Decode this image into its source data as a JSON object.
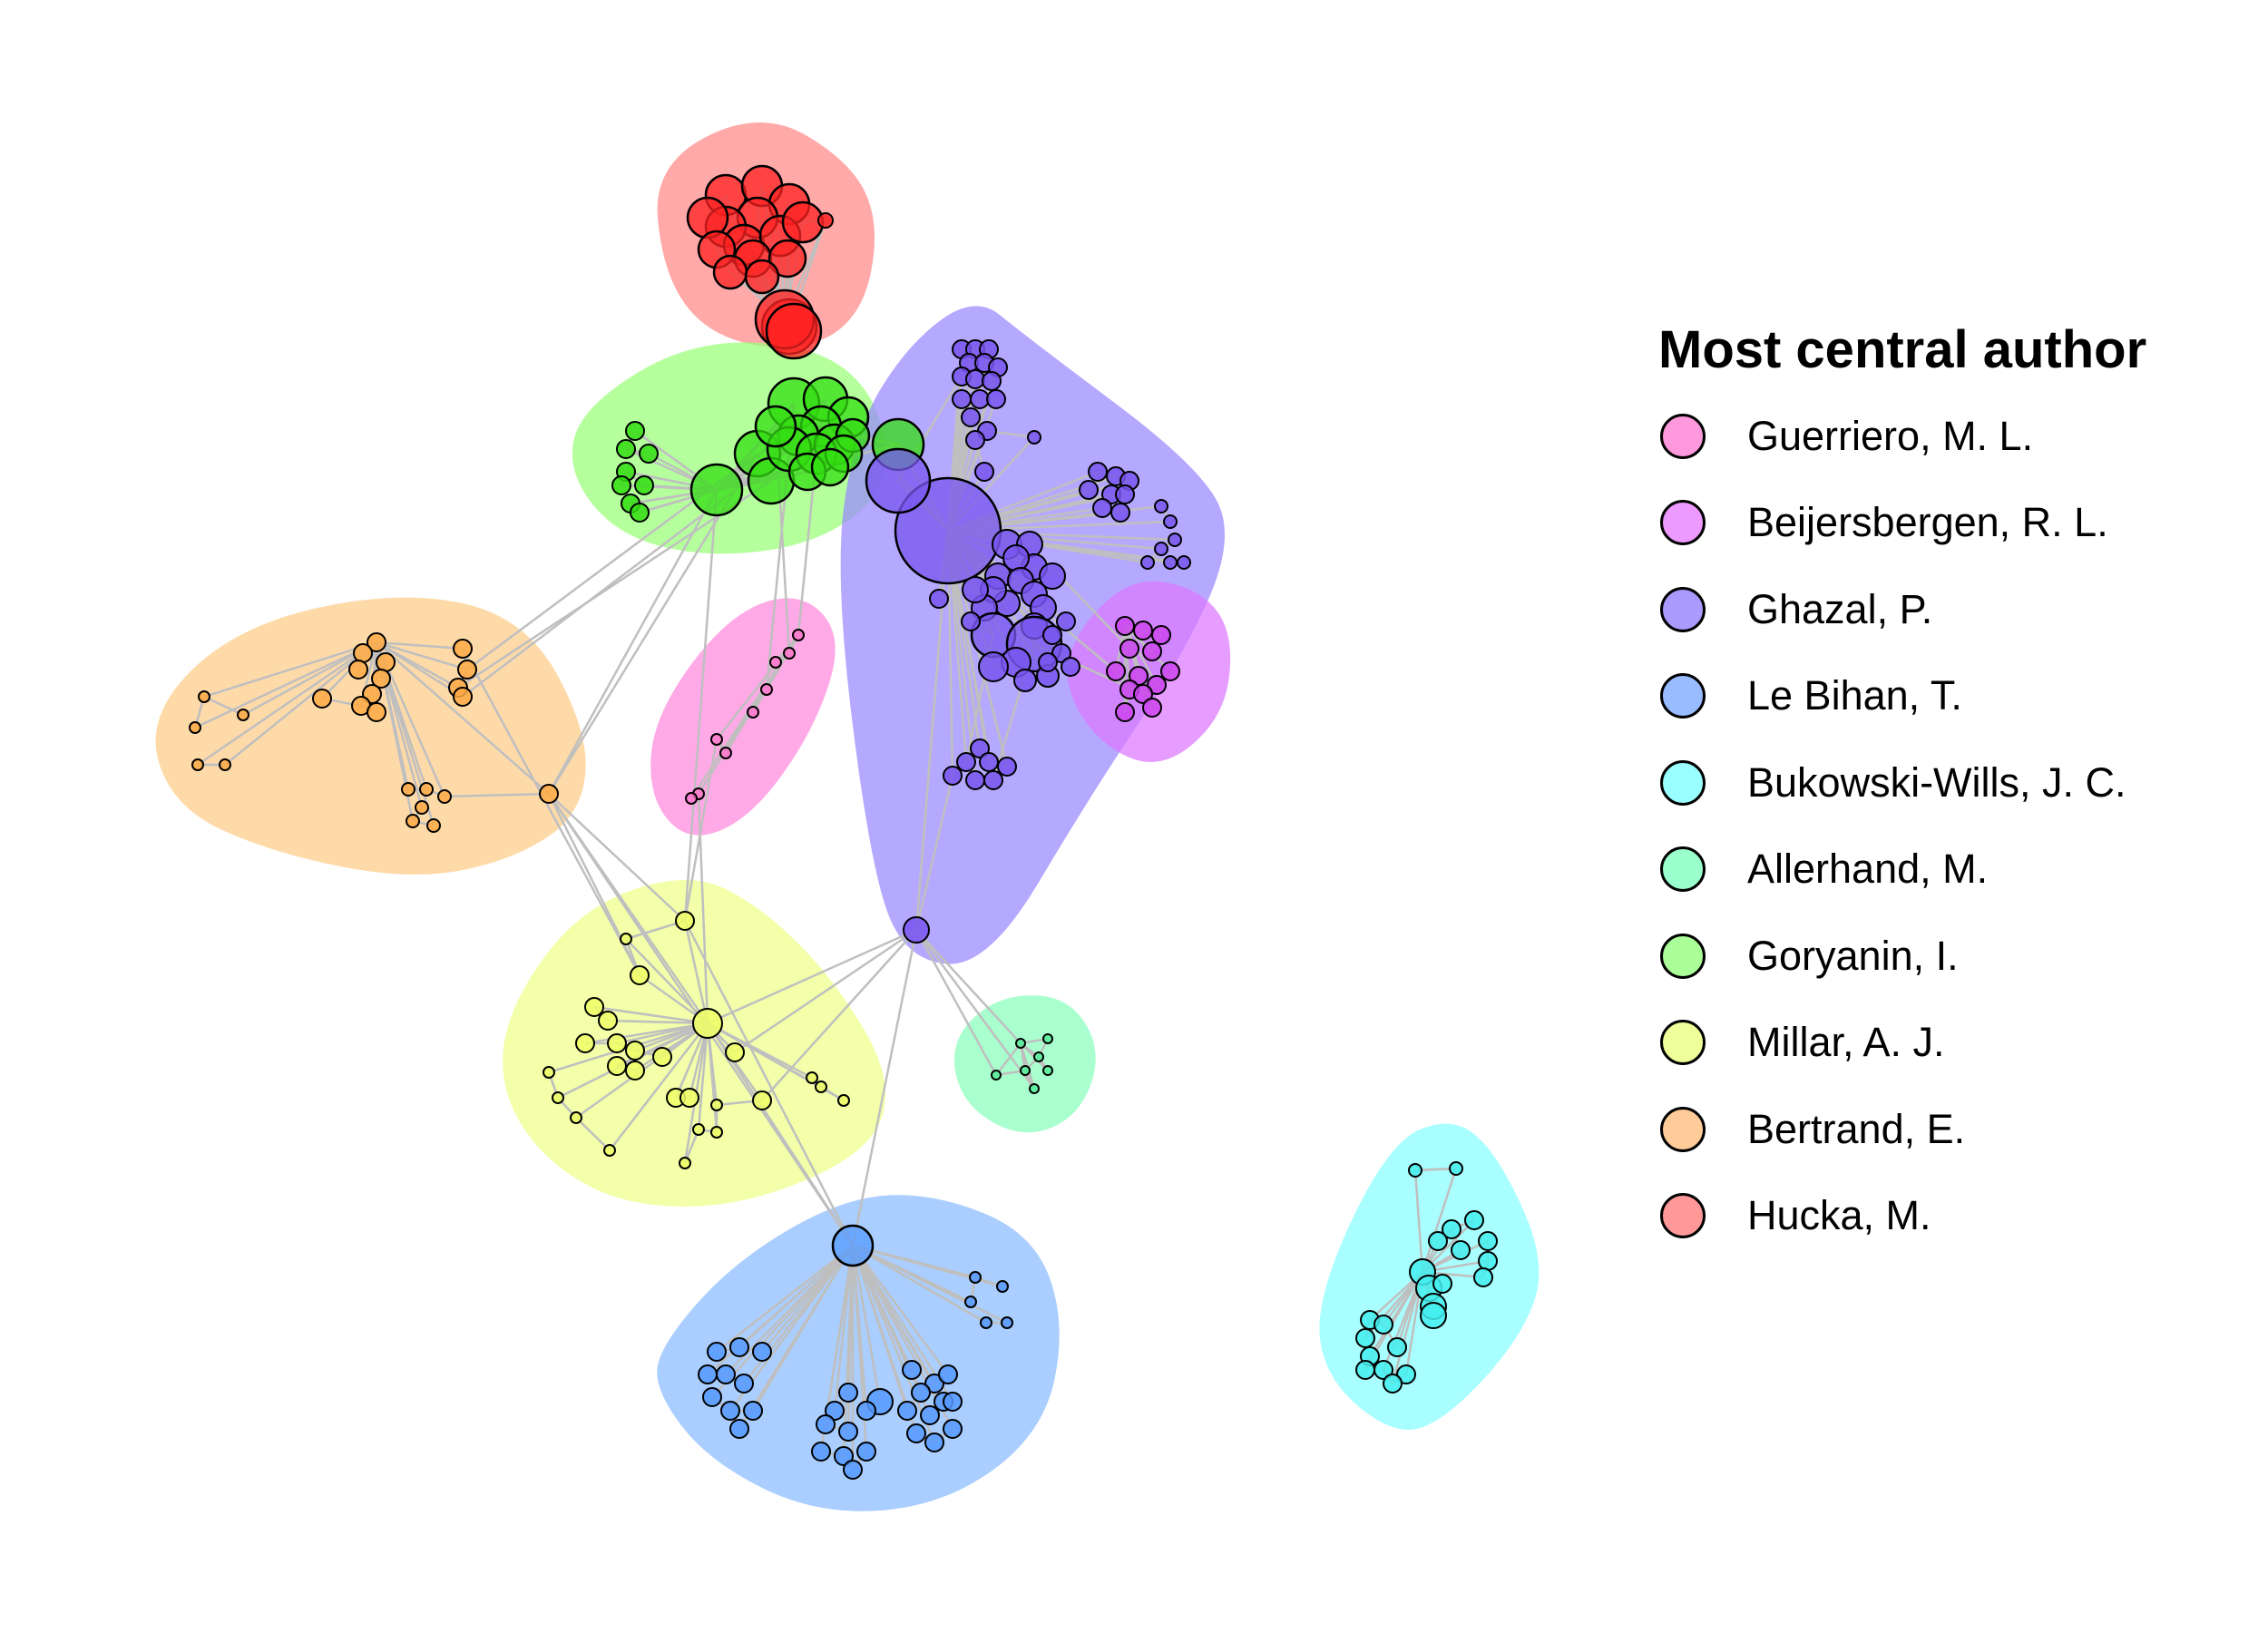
{
  "legend": {
    "title": "Most central author",
    "items": [
      {
        "label": "Guerriero, M. L.",
        "color": "#FF99DD"
      },
      {
        "label": "Beijersbergen, R. L.",
        "color": "#EE99FF"
      },
      {
        "label": "Ghazal, P.",
        "color": "#AA99FF"
      },
      {
        "label": "Le Bihan, T.",
        "color": "#99BBFF"
      },
      {
        "label": "Bukowski-Wills, J. C.",
        "color": "#99FFFF"
      },
      {
        "label": "Allerhand, M.",
        "color": "#99FFCC"
      },
      {
        "label": "Goryanin, I.",
        "color": "#AAFF99"
      },
      {
        "label": "Millar, A. J.",
        "color": "#EEFF99"
      },
      {
        "label": "Bertrand, E.",
        "color": "#FFCC99"
      },
      {
        "label": "Hucka, M.",
        "color": "#FF9999"
      }
    ]
  },
  "clusters": [
    {
      "name": "Hucka, M.",
      "fill": "#FF8888",
      "node_color": "#FF2222"
    },
    {
      "name": "Goryanin, I.",
      "fill": "#99FF77",
      "node_color": "#33DD11"
    },
    {
      "name": "Ghazal, P.",
      "fill": "#9988FF",
      "node_color": "#7755EE"
    },
    {
      "name": "Beijersbergen, R. L.",
      "fill": "#DD77FF",
      "node_color": "#CC44EE"
    },
    {
      "name": "Guerriero, M. L.",
      "fill": "#FF88DD",
      "node_color": "#FF77CC"
    },
    {
      "name": "Bertrand, E.",
      "fill": "#FFCC88",
      "node_color": "#FFAA44"
    },
    {
      "name": "Millar, A. J.",
      "fill": "#EEFF88",
      "node_color": "#EEFF66"
    },
    {
      "name": "Allerhand, M.",
      "fill": "#88FFBB",
      "node_color": "#55EE99"
    },
    {
      "name": "Le Bihan, T.",
      "fill": "#88BBFF",
      "node_color": "#5599FF"
    },
    {
      "name": "Bukowski-Wills, J. C.",
      "fill": "#88FFFF",
      "node_color": "#44EEEE"
    }
  ]
}
